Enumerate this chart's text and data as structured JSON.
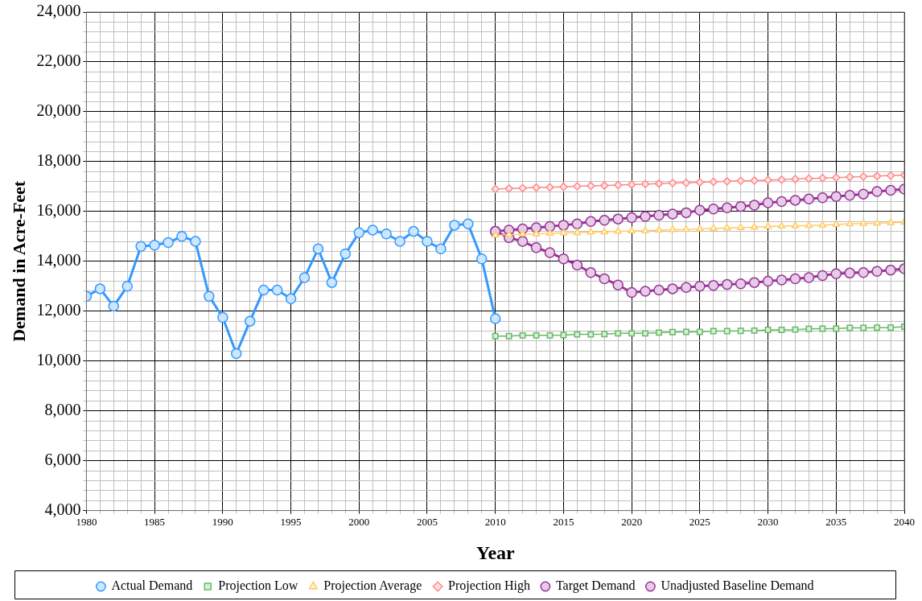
{
  "chart_data": {
    "type": "line",
    "xlabel": "Year",
    "ylabel": "Demand in Acre-Feet",
    "xlim": [
      1980,
      2040
    ],
    "ylim": [
      4000,
      24000
    ],
    "xticks": [
      1980,
      {
        "value": 1981,
        "label": null
      },
      {
        "value": 1982,
        "label": null
      },
      {
        "value": 1983,
        "label": null
      },
      {
        "value": 1984,
        "label": null
      },
      1985,
      {
        "value": 1986,
        "label": null
      },
      {
        "value": 1987,
        "label": null
      },
      {
        "value": 1988,
        "label": null
      },
      {
        "value": 1989,
        "label": null
      },
      1990,
      {
        "value": 1991,
        "label": null
      },
      {
        "value": 1992,
        "label": null
      },
      {
        "value": 1993,
        "label": null
      },
      {
        "value": 1994,
        "label": null
      },
      1995,
      {
        "value": 1996,
        "label": null
      },
      {
        "value": 1997,
        "label": null
      },
      {
        "value": 1998,
        "label": null
      },
      {
        "value": 1999,
        "label": null
      },
      2000,
      {
        "value": 2001,
        "label": null
      },
      {
        "value": 2002,
        "label": null
      },
      {
        "value": 2003,
        "label": null
      },
      {
        "value": 2004,
        "label": null
      },
      2005,
      {
        "value": 2006,
        "label": null
      },
      {
        "value": 2007,
        "label": null
      },
      {
        "value": 2008,
        "label": null
      },
      {
        "value": 2009,
        "label": null
      },
      2010,
      {
        "value": 2011,
        "label": null
      },
      {
        "value": 2012,
        "label": null
      },
      {
        "value": 2013,
        "label": null
      },
      {
        "value": 2014,
        "label": null
      },
      2015,
      {
        "value": 2016,
        "label": null
      },
      {
        "value": 2017,
        "label": null
      },
      {
        "value": 2018,
        "label": null
      },
      {
        "value": 2019,
        "label": null
      },
      2020,
      {
        "value": 2021,
        "label": null
      },
      {
        "value": 2022,
        "label": null
      },
      {
        "value": 2023,
        "label": null
      },
      {
        "value": 2024,
        "label": null
      },
      2025,
      {
        "value": 2026,
        "label": null
      },
      {
        "value": 2027,
        "label": null
      },
      {
        "value": 2028,
        "label": null
      },
      {
        "value": 2029,
        "label": null
      },
      2030,
      {
        "value": 2031,
        "label": null
      },
      {
        "value": 2032,
        "label": null
      },
      {
        "value": 2033,
        "label": null
      },
      {
        "value": 2034,
        "label": null
      },
      2035,
      {
        "value": 2036,
        "label": null
      },
      {
        "value": 2037,
        "label": null
      },
      {
        "value": 2038,
        "label": null
      },
      {
        "value": 2039,
        "label": null
      },
      2040
    ],
    "yticks": [
      {
        "value": 4000,
        "label": "4,000"
      },
      {
        "value": 4400,
        "label": null
      },
      {
        "value": 4800,
        "label": null
      },
      {
        "value": 5200,
        "label": null
      },
      {
        "value": 5600,
        "label": null
      },
      {
        "value": 6000,
        "label": "6,000"
      },
      {
        "value": 6400,
        "label": null
      },
      {
        "value": 6800,
        "label": null
      },
      {
        "value": 7200,
        "label": null
      },
      {
        "value": 7600,
        "label": null
      },
      {
        "value": 8000,
        "label": "8,000"
      },
      {
        "value": 8400,
        "label": null
      },
      {
        "value": 8800,
        "label": null
      },
      {
        "value": 9200,
        "label": null
      },
      {
        "value": 9600,
        "label": null
      },
      {
        "value": 10000,
        "label": "10,000"
      },
      {
        "value": 10400,
        "label": null
      },
      {
        "value": 10800,
        "label": null
      },
      {
        "value": 11200,
        "label": null
      },
      {
        "value": 11600,
        "label": null
      },
      {
        "value": 12000,
        "label": "12,000"
      },
      {
        "value": 12400,
        "label": null
      },
      {
        "value": 12800,
        "label": null
      },
      {
        "value": 13200,
        "label": null
      },
      {
        "value": 13600,
        "label": null
      },
      {
        "value": 14000,
        "label": "14,000"
      },
      {
        "value": 14400,
        "label": null
      },
      {
        "value": 14800,
        "label": null
      },
      {
        "value": 15200,
        "label": null
      },
      {
        "value": 15600,
        "label": null
      },
      {
        "value": 16000,
        "label": "16,000"
      },
      {
        "value": 16400,
        "label": null
      },
      {
        "value": 16800,
        "label": null
      },
      {
        "value": 17200,
        "label": null
      },
      {
        "value": 17600,
        "label": null
      },
      {
        "value": 18000,
        "label": "18,000"
      },
      {
        "value": 18400,
        "label": null
      },
      {
        "value": 18800,
        "label": null
      },
      {
        "value": 19200,
        "label": null
      },
      {
        "value": 19600,
        "label": null
      },
      {
        "value": 20000,
        "label": "20,000"
      },
      {
        "value": 20400,
        "label": null
      },
      {
        "value": 20800,
        "label": null
      },
      {
        "value": 21200,
        "label": null
      },
      {
        "value": 21600,
        "label": null
      },
      {
        "value": 22000,
        "label": "22,000"
      },
      {
        "value": 22400,
        "label": null
      },
      {
        "value": 22800,
        "label": null
      },
      {
        "value": 23200,
        "label": null
      },
      {
        "value": 23600,
        "label": null
      },
      {
        "value": 24000,
        "label": "24,000"
      }
    ],
    "grid": true,
    "legend": "bottom",
    "line_style": "solid",
    "series": [
      {
        "name": "Actual Demand",
        "color": "#3399ff",
        "marker": "circle",
        "x": [
          1980,
          1981,
          1982,
          1983,
          1984,
          1985,
          1986,
          1987,
          1988,
          1989,
          1990,
          1991,
          1992,
          1993,
          1994,
          1995,
          1996,
          1997,
          1998,
          1999,
          2000,
          2001,
          2002,
          2003,
          2004,
          2005,
          2006,
          2007,
          2008,
          2009,
          2010
        ],
        "values": [
          12600,
          12900,
          12200,
          13000,
          14600,
          14650,
          14750,
          15000,
          14800,
          12600,
          11750,
          10300,
          11600,
          12850,
          12850,
          12500,
          13350,
          14500,
          13150,
          14300,
          15150,
          15250,
          15100,
          14800,
          15200,
          14800,
          14500,
          15450,
          15500,
          14100,
          11700
        ]
      },
      {
        "name": "Projection Low",
        "color": "#66bb66",
        "marker": "square",
        "x": [
          2010,
          2011,
          2012,
          2013,
          2014,
          2015,
          2016,
          2017,
          2018,
          2019,
          2020,
          2021,
          2022,
          2023,
          2024,
          2025,
          2026,
          2027,
          2028,
          2029,
          2030,
          2031,
          2032,
          2033,
          2034,
          2035,
          2036,
          2037,
          2038,
          2039,
          2040
        ],
        "values": [
          11000,
          11000,
          11030,
          11030,
          11030,
          11040,
          11070,
          11070,
          11080,
          11110,
          11110,
          11110,
          11140,
          11160,
          11170,
          11170,
          11200,
          11200,
          11210,
          11220,
          11250,
          11250,
          11260,
          11290,
          11300,
          11300,
          11330,
          11330,
          11340,
          11340,
          11380
        ]
      },
      {
        "name": "Projection Average",
        "color": "#ffcc66",
        "marker": "triangle",
        "x": [
          2010,
          2011,
          2012,
          2013,
          2014,
          2015,
          2016,
          2017,
          2018,
          2019,
          2020,
          2021,
          2022,
          2023,
          2024,
          2025,
          2026,
          2027,
          2028,
          2029,
          2030,
          2031,
          2032,
          2033,
          2034,
          2035,
          2036,
          2037,
          2038,
          2039,
          2040
        ],
        "values": [
          15050,
          15070,
          15090,
          15100,
          15120,
          15140,
          15150,
          15170,
          15180,
          15200,
          15220,
          15230,
          15250,
          15270,
          15280,
          15300,
          15320,
          15340,
          15350,
          15370,
          15400,
          15410,
          15420,
          15440,
          15450,
          15480,
          15500,
          15520,
          15530,
          15550,
          15570
        ]
      },
      {
        "name": "Projection High",
        "color": "#ff8888",
        "marker": "diamond",
        "x": [
          2010,
          2011,
          2012,
          2013,
          2014,
          2015,
          2016,
          2017,
          2018,
          2019,
          2020,
          2021,
          2022,
          2023,
          2024,
          2025,
          2026,
          2027,
          2028,
          2029,
          2030,
          2031,
          2032,
          2033,
          2034,
          2035,
          2036,
          2037,
          2038,
          2039,
          2040
        ],
        "values": [
          16900,
          16920,
          16940,
          16960,
          16970,
          16990,
          17010,
          17030,
          17040,
          17060,
          17080,
          17100,
          17120,
          17140,
          17150,
          17170,
          17190,
          17210,
          17230,
          17240,
          17260,
          17280,
          17300,
          17320,
          17340,
          17360,
          17380,
          17400,
          17420,
          17440,
          17460
        ]
      },
      {
        "name": "Target Demand",
        "color": "#993399",
        "marker": "circle",
        "x": [
          2010,
          2011,
          2012,
          2013,
          2014,
          2015,
          2016,
          2017,
          2018,
          2019,
          2020,
          2021,
          2022,
          2023,
          2024,
          2025,
          2026,
          2027,
          2028,
          2029,
          2030,
          2031,
          2032,
          2033,
          2034,
          2035,
          2036,
          2037,
          2038,
          2039,
          2040
        ],
        "values": [
          15200,
          14950,
          14800,
          14550,
          14350,
          14100,
          13850,
          13550,
          13300,
          13050,
          12750,
          12800,
          12850,
          12900,
          12950,
          13000,
          13030,
          13070,
          13100,
          13150,
          13200,
          13250,
          13300,
          13350,
          13430,
          13500,
          13530,
          13550,
          13600,
          13650,
          13700
        ]
      },
      {
        "name": "Unadjusted Baseline Demand",
        "color": "#993399",
        "marker": "circle",
        "x": [
          2010,
          2011,
          2012,
          2013,
          2014,
          2015,
          2016,
          2017,
          2018,
          2019,
          2020,
          2021,
          2022,
          2023,
          2024,
          2025,
          2026,
          2027,
          2028,
          2029,
          2030,
          2031,
          2032,
          2033,
          2034,
          2035,
          2036,
          2037,
          2038,
          2039,
          2040
        ],
        "values": [
          15200,
          15250,
          15300,
          15350,
          15400,
          15450,
          15500,
          15600,
          15650,
          15700,
          15750,
          15800,
          15850,
          15900,
          15950,
          16050,
          16100,
          16150,
          16200,
          16250,
          16350,
          16400,
          16450,
          16500,
          16550,
          16600,
          16650,
          16700,
          16800,
          16850,
          16900
        ]
      }
    ]
  }
}
